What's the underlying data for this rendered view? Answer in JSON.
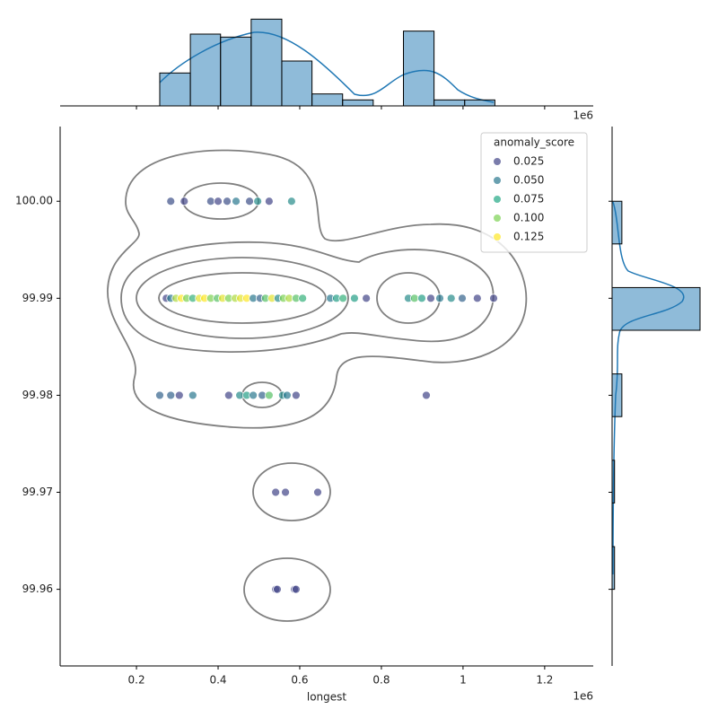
{
  "chart_data": {
    "type": "scatter",
    "x_label": "longest",
    "x_offset_label": "1e6",
    "xlim": [
      0.013,
      1.319
    ],
    "ylim": [
      99.9521,
      100.0077
    ],
    "xticks": [
      0.2,
      0.4,
      0.6,
      0.8,
      1.0,
      1.2
    ],
    "yticks": [
      {
        "value": 100,
        "label": "100.00"
      },
      99.99,
      99.98,
      99.97,
      99.96
    ],
    "x": [
      0.284,
      0.317,
      0.382,
      0.4,
      0.422,
      0.444,
      0.477,
      0.497,
      0.525,
      0.58,
      0.273,
      0.284,
      0.297,
      0.31,
      0.323,
      0.338,
      0.354,
      0.367,
      0.382,
      0.398,
      0.411,
      0.426,
      0.442,
      0.455,
      0.47,
      0.486,
      0.503,
      0.516,
      0.532,
      0.547,
      0.56,
      0.574,
      0.591,
      0.607,
      0.675,
      0.69,
      0.706,
      0.734,
      0.763,
      0.866,
      0.881,
      0.899,
      0.921,
      0.943,
      0.971,
      0.998,
      1.035,
      1.075,
      0.257,
      0.284,
      0.305,
      0.338,
      0.426,
      0.453,
      0.47,
      0.486,
      0.508,
      0.525,
      0.558,
      0.569,
      0.591,
      0.91,
      0.541,
      0.565,
      0.644,
      0.541,
      0.545,
      0.587,
      0.591
    ],
    "values": [
      100,
      100,
      100,
      100,
      100,
      100,
      100,
      100,
      100,
      100,
      99.99,
      99.99,
      99.99,
      99.99,
      99.99,
      99.99,
      99.99,
      99.99,
      99.99,
      99.99,
      99.99,
      99.99,
      99.99,
      99.99,
      99.99,
      99.99,
      99.99,
      99.99,
      99.99,
      99.99,
      99.99,
      99.99,
      99.99,
      99.99,
      99.99,
      99.99,
      99.99,
      99.99,
      99.99,
      99.99,
      99.99,
      99.99,
      99.99,
      99.99,
      99.99,
      99.99,
      99.99,
      99.99,
      99.98,
      99.98,
      99.98,
      99.98,
      99.98,
      99.98,
      99.98,
      99.98,
      99.98,
      99.98,
      99.98,
      99.98,
      99.98,
      99.98,
      99.97,
      99.97,
      99.97,
      99.96,
      99.96,
      99.96,
      99.96
    ],
    "hue": [
      0.03,
      0.02,
      0.03,
      0.01,
      0.03,
      0.05,
      0.03,
      0.06,
      0.02,
      0.06,
      0.02,
      0.05,
      0.11,
      0.13,
      0.1,
      0.08,
      0.12,
      0.13,
      0.1,
      0.09,
      0.12,
      0.1,
      0.11,
      0.12,
      0.13,
      0.05,
      0.04,
      0.09,
      0.12,
      0.06,
      0.1,
      0.11,
      0.09,
      0.08,
      0.05,
      0.07,
      0.08,
      0.07,
      0.01,
      0.06,
      0.09,
      0.07,
      0.01,
      0.05,
      0.06,
      0.04,
      0.01,
      0.02,
      0.04,
      0.04,
      0.01,
      0.05,
      0.01,
      0.06,
      0.07,
      0.05,
      0.04,
      0.09,
      0.06,
      0.05,
      0.01,
      0.02,
      0.01,
      0.0,
      0.02,
      0.01,
      0.02,
      0.0,
      0.0
    ],
    "legend": {
      "title": "anomaly_score",
      "loc": "upper right",
      "entries": [
        {
          "value": 0.025,
          "label": "0.025"
        },
        {
          "value": 0.05,
          "label": "0.050"
        },
        {
          "value": 0.075,
          "label": "0.075"
        },
        {
          "value": 0.1,
          "label": "0.100"
        },
        {
          "value": 0.125,
          "label": "0.125"
        }
      ],
      "colors": [
        "#414487",
        "#2a788e",
        "#22a884",
        "#7ad151",
        "#fde725"
      ]
    },
    "marginal_x": {
      "type": "histogram",
      "color": "#1f77b4",
      "bins": [
        0.257,
        0.332,
        0.406,
        0.481,
        0.556,
        0.63,
        0.705,
        0.78,
        0.854,
        0.929,
        1.004,
        1.078
      ],
      "counts": [
        11,
        24,
        23,
        29,
        15,
        4,
        2,
        0,
        25,
        2,
        2
      ],
      "countlim": [
        0,
        30
      ]
    },
    "marginal_y": {
      "type": "histogram",
      "color": "#1f77b4",
      "bins": [
        99.96,
        99.9644,
        99.9689,
        99.9733,
        99.9778,
        99.9822,
        99.9867,
        99.9911,
        99.9956,
        100.0
      ],
      "counts": [
        1,
        0,
        1,
        0,
        4,
        0,
        36,
        0,
        4
      ],
      "countlim": [
        0,
        36
      ]
    }
  }
}
